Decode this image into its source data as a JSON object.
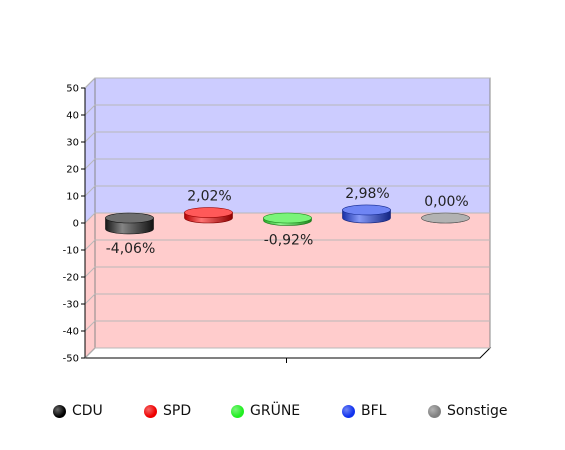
{
  "chart_data": {
    "type": "bar",
    "categories": [
      "CDU",
      "SPD",
      "GRÜNE",
      "BFL",
      "Sonstige"
    ],
    "values": [
      -4.06,
      2.02,
      -0.92,
      2.98,
      0.0
    ],
    "data_labels": [
      "-4,06%",
      "2,02%",
      "-0,92%",
      "2,98%",
      "0,00%"
    ],
    "colors": [
      "#202020",
      "#ff0000",
      "#33ee33",
      "#2244ee",
      "#888888"
    ],
    "ylim": [
      -50,
      50
    ],
    "yticks": [
      50,
      40,
      30,
      20,
      10,
      0,
      -10,
      -20,
      -30,
      -40,
      -50
    ],
    "positive_region_color": "#ccccff",
    "negative_region_color": "#ffcccc",
    "grid": true,
    "legend_position": "bottom"
  },
  "legend": {
    "items": [
      {
        "label": "CDU",
        "color": "#000000"
      },
      {
        "label": "SPD",
        "color": "#ee0000"
      },
      {
        "label": "GRÜNE",
        "color": "#22ee22"
      },
      {
        "label": "BFL",
        "color": "#1133ee"
      },
      {
        "label": "Sonstige",
        "color": "#808080"
      }
    ]
  }
}
